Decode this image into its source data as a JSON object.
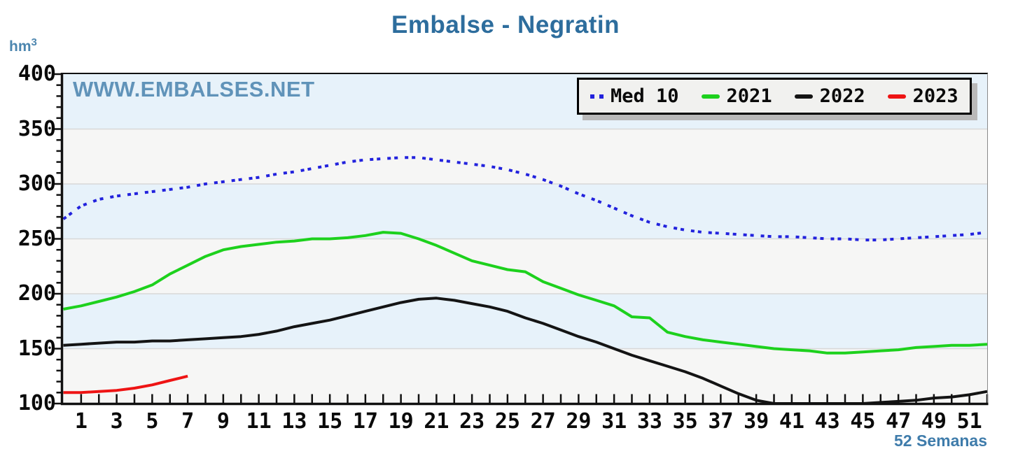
{
  "title": "Embalse - Negratin",
  "watermark": "WWW.EMBALSES.NET",
  "unit": {
    "base": "hm",
    "sup": "3"
  },
  "x_caption": "52 Semanas",
  "legend": [
    {
      "label": "Med 10",
      "color": "#2222dd",
      "style": "dotted"
    },
    {
      "label": "2021",
      "color": "#1dd11d",
      "style": "solid"
    },
    {
      "label": "2022",
      "color": "#141414",
      "style": "solid"
    },
    {
      "label": "2023",
      "color": "#ee1414",
      "style": "solid"
    }
  ],
  "colors": {
    "title_blue": "#2d6d9d",
    "watermark_blue": "#3b79a7",
    "band_blue": "#e7f2fa",
    "band_gray": "#f6f6f5",
    "gridline": "#d8d8d8",
    "axis": "#111111",
    "legend_bg": "#f1f1ef",
    "legend_shadow": "#b9b9b9"
  },
  "chart_data": {
    "type": "line",
    "title": "Embalse - Negratin",
    "ylabel": "hm3",
    "xlabel": "52 Semanas",
    "ylim": [
      100,
      400
    ],
    "weeks": 52,
    "y_ticks": [
      400,
      350,
      300,
      250,
      200,
      150,
      100
    ],
    "y_minor_step": 10,
    "x_tick_labels": [
      1,
      3,
      5,
      7,
      9,
      11,
      13,
      15,
      17,
      19,
      21,
      23,
      25,
      27,
      29,
      31,
      33,
      35,
      37,
      39,
      41,
      43,
      45,
      47,
      49,
      51
    ],
    "grid": "horizontal-50s",
    "legend_position": "top-right",
    "band_colors": [
      "#e7f2fa",
      "#f6f6f5"
    ],
    "series": [
      {
        "name": "Med 10",
        "color": "#2222dd",
        "dash": "dotted",
        "start_week": 0,
        "values": [
          268,
          280,
          286,
          289,
          291,
          293,
          295,
          297,
          300,
          302,
          304,
          306,
          309,
          311,
          314,
          317,
          320,
          322,
          323,
          324,
          324,
          322,
          320,
          318,
          316,
          313,
          309,
          304,
          298,
          291,
          285,
          278,
          271,
          265,
          261,
          258,
          256,
          255,
          254,
          253,
          252,
          252,
          251,
          250,
          250,
          249,
          249,
          250,
          251,
          252,
          253,
          254,
          256
        ]
      },
      {
        "name": "2021",
        "color": "#1dd11d",
        "dash": "solid",
        "start_week": 0,
        "values": [
          186,
          189,
          193,
          197,
          202,
          208,
          218,
          226,
          234,
          240,
          243,
          245,
          247,
          248,
          250,
          250,
          251,
          253,
          256,
          255,
          250,
          244,
          237,
          230,
          226,
          222,
          220,
          211,
          205,
          199,
          194,
          189,
          179,
          178,
          165,
          161,
          158,
          156,
          154,
          152,
          150,
          149,
          148,
          146,
          146,
          147,
          148,
          149,
          151,
          152,
          153,
          153,
          154
        ]
      },
      {
        "name": "2022",
        "color": "#141414",
        "dash": "solid",
        "start_week": 0,
        "values": [
          153,
          154,
          155,
          156,
          156,
          157,
          157,
          158,
          159,
          160,
          161,
          163,
          166,
          170,
          173,
          176,
          180,
          184,
          188,
          192,
          195,
          196,
          194,
          191,
          188,
          184,
          178,
          173,
          167,
          161,
          156,
          150,
          144,
          139,
          134,
          129,
          123,
          116,
          109,
          103,
          100,
          100,
          100,
          100,
          100,
          100,
          101,
          102,
          103,
          105,
          106,
          108,
          111
        ]
      },
      {
        "name": "2023",
        "color": "#ee1414",
        "dash": "solid",
        "start_week": 0,
        "values": [
          110,
          110,
          111,
          112,
          114,
          117,
          121,
          125
        ]
      }
    ]
  }
}
